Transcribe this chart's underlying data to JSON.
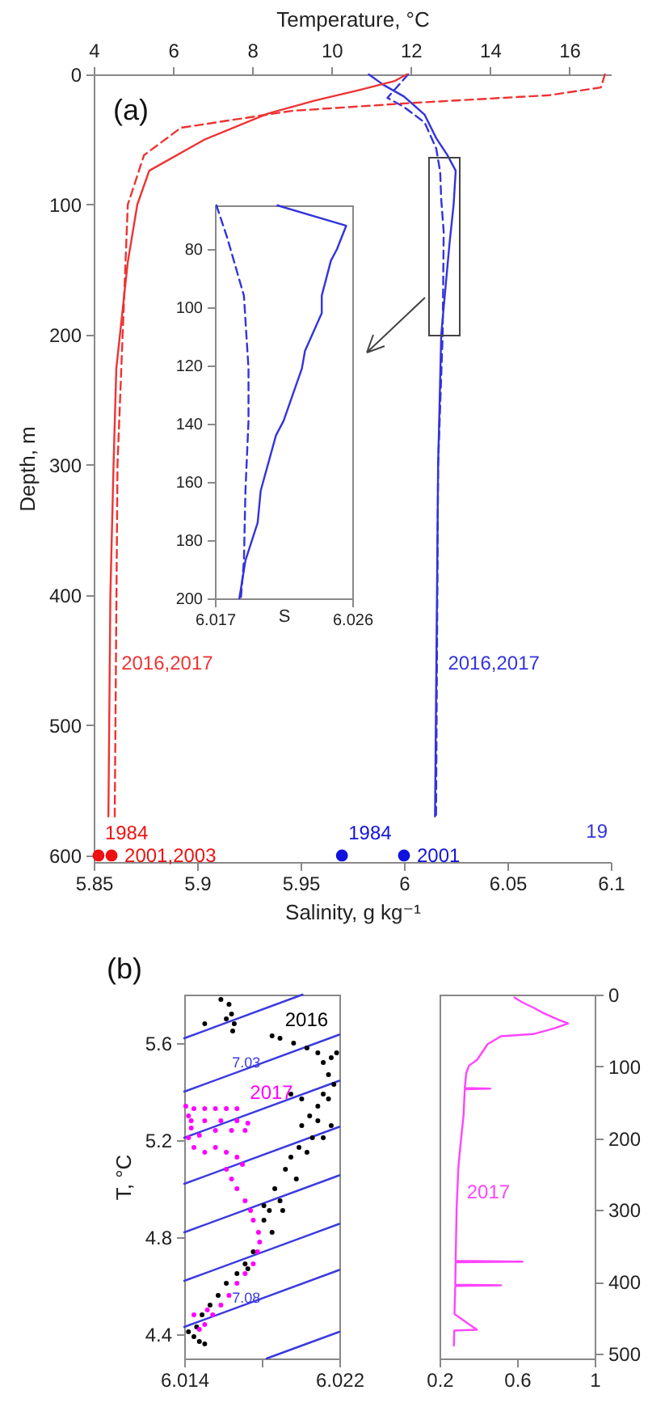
{
  "chart_data": [
    {
      "type": "line",
      "xlabel": "Salinity, g kg⁻¹",
      "x2label": "Temperature, °C",
      "ylabel": "Depth, m",
      "xlim": [
        5.85,
        6.1
      ],
      "xticks": [
        5.85,
        5.9,
        5.95,
        6,
        6.05,
        6.1
      ],
      "x2lim": [
        4,
        17.05
      ],
      "x2ticks": [
        4,
        6,
        8,
        10,
        12,
        14,
        16
      ],
      "ylim": [
        605,
        0
      ],
      "yticks": [
        0,
        100,
        200,
        300,
        400,
        500,
        600
      ],
      "annotations": [
        "(a)",
        "19"
      ],
      "series": [
        {
          "name": "2016,2017",
          "axis": "x2",
          "color": "#ee3333",
          "line_style": "solid",
          "x": [
            11.9,
            11.6,
            10.7,
            9.6,
            8.4,
            6.8,
            5.4,
            5.1,
            4.86,
            4.57,
            4.5,
            4.42,
            4.37
          ],
          "values": [
            0,
            5,
            12,
            20,
            30,
            50,
            74,
            100,
            144,
            226,
            300,
            400,
            570
          ]
        },
        {
          "axis": "x2",
          "color": "#ee3333",
          "line_style": "dashed",
          "x": [
            16.9,
            16.8,
            15.5,
            12,
            9,
            6.2,
            5.27,
            4.86,
            4.73,
            4.6,
            4.53
          ],
          "values": [
            0,
            10,
            16,
            22,
            28,
            41,
            62,
            100,
            200,
            300,
            570
          ]
        },
        {
          "name": "2016,2017",
          "color": "#3333dd",
          "line_style": "solid",
          "x": [
            5.983,
            5.99,
            6.0,
            6.01,
            6.0156,
            6.021,
            6.025,
            6.024,
            6.022,
            6.018,
            6.0165,
            6.015
          ],
          "values": [
            0,
            8,
            17,
            31,
            49,
            62,
            74,
            100,
            130,
            200,
            300,
            570
          ]
        },
        {
          "color": "#3333dd",
          "line_style": "dashed",
          "x": [
            6.002,
            5.992,
            6.0,
            6.01,
            6.0156,
            6.0175,
            6.018,
            6.0192,
            6.0187,
            6.0165,
            6.0155
          ],
          "values": [
            0,
            18,
            25,
            37,
            57,
            75,
            96,
            121,
            200,
            300,
            570
          ]
        },
        {
          "name": "1984",
          "type": "scatter",
          "axis": "x2",
          "color": "#ee1111",
          "marker": "circle",
          "x": [
            4.12
          ],
          "values": [
            600
          ]
        },
        {
          "name": "2001,2003",
          "type": "scatter",
          "axis": "x2",
          "color": "#ee1111",
          "marker": "circle",
          "x": [
            4.45
          ],
          "values": [
            600
          ]
        },
        {
          "name": "1984",
          "type": "scatter",
          "color": "#1111dd",
          "marker": "circle",
          "x": [
            5.97
          ],
          "values": [
            600
          ]
        },
        {
          "name": "2001",
          "type": "scatter",
          "color": "#1111dd",
          "marker": "circle",
          "x": [
            6.0
          ],
          "values": [
            600
          ]
        }
      ]
    },
    {
      "type": "line",
      "xlabel": "S",
      "xlim": [
        6.017,
        6.026
      ],
      "xticks": [
        6.017,
        6.026
      ],
      "ylim": [
        200,
        65
      ],
      "yticks": [
        80,
        100,
        120,
        140,
        160,
        180,
        200
      ],
      "series": [
        {
          "color": "#3333dd",
          "line_style": "solid",
          "x": [
            6.0211,
            6.0256,
            6.025,
            6.0246,
            6.024,
            6.024,
            6.0229,
            6.0227,
            6.0215,
            6.021,
            6.02,
            6.0198,
            6.019,
            6.0186
          ],
          "values": [
            65,
            72,
            80,
            84,
            96,
            102,
            115,
            121,
            139,
            144,
            163,
            174,
            187,
            200
          ]
        },
        {
          "color": "#3333dd",
          "line_style": "dashed",
          "x": [
            6.0171,
            6.0178,
            6.0189,
            6.0192,
            6.0192,
            6.019,
            6.0189,
            6.0187
          ],
          "values": [
            65,
            76,
            96,
            121,
            139,
            163,
            187,
            200
          ]
        }
      ]
    },
    {
      "type": "scatter",
      "ylabel": "T, °C",
      "xlim": [
        6.014,
        6.022
      ],
      "xticks": [
        {
          "value": 6.014,
          "label": "6.014"
        },
        {
          "value": 6.018,
          "label": null
        },
        {
          "value": 6.022,
          "label": "6.022"
        }
      ],
      "ylim": [
        4.3,
        5.8
      ],
      "yticks": [
        4.4,
        4.8,
        5.2,
        5.6
      ],
      "annotations": [
        "(b)"
      ],
      "series": [
        {
          "type": "line",
          "color": "#3a3ae0",
          "line_style": "solid",
          "x": [
            6.014,
            6.0201
          ],
          "values": [
            5.62,
            5.8
          ]
        },
        {
          "name": "7.03",
          "type": "line",
          "color": "#3a3ae0",
          "line_style": "solid",
          "x": [
            6.014,
            6.0172,
            6.022
          ],
          "values": [
            5.4,
            5.494,
            5.635
          ]
        },
        {
          "type": "line",
          "color": "#3a3ae0",
          "line_style": "solid",
          "x": [
            6.014,
            6.022
          ],
          "values": [
            5.21,
            5.445
          ]
        },
        {
          "type": "line",
          "color": "#3a3ae0",
          "line_style": "solid",
          "x": [
            6.014,
            6.022
          ],
          "values": [
            5.02,
            5.255
          ]
        },
        {
          "type": "line",
          "color": "#3a3ae0",
          "line_style": "solid",
          "x": [
            6.014,
            6.022
          ],
          "values": [
            4.82,
            5.055
          ]
        },
        {
          "type": "line",
          "color": "#3a3ae0",
          "line_style": "solid",
          "x": [
            6.014,
            6.022
          ],
          "values": [
            4.62,
            4.855
          ]
        },
        {
          "name": "7.08",
          "type": "line",
          "color": "#3a3ae0",
          "line_style": "solid",
          "x": [
            6.014,
            6.0172,
            6.022
          ],
          "values": [
            4.43,
            4.524,
            4.665
          ]
        },
        {
          "type": "line",
          "color": "#3a3ae0",
          "line_style": "solid",
          "x": [
            6.01825,
            6.022
          ],
          "values": [
            4.3,
            4.41
          ]
        },
        {
          "name": "2016",
          "color": "#000000",
          "marker": "circle",
          "x": [
            6.01589,
            6.01631,
            6.01644,
            6.01617,
            6.01658,
            6.0165,
            6.01506,
            6.01894,
            6.01964,
            6.02033,
            6.02089,
            6.02117,
            6.02144,
            6.02172,
            6.02186,
            6.02158,
            6.02117,
            6.02089,
            6.02144,
            6.02047,
            6.02006,
            6.02089,
            6.02061,
            6.01992,
            6.0195,
            6.02033,
            6.01922,
            6.01978,
            6.01867,
            6.01894,
            6.01839,
            6.01811,
            6.01853,
            6.01797,
            6.01756,
            6.01714,
            6.01672,
            6.01617,
            6.01575,
            6.01533,
            6.01492,
            6.01464,
            6.0145,
            6.01478,
            6.01506,
            6.01422,
            6.02006,
            6.0195,
            6.02117,
            6.02158,
            6.01811,
            6.01908,
            6.01728,
            6.01853
          ],
          "values": [
            5.78,
            5.76,
            5.72,
            5.7,
            5.68,
            5.65,
            5.68,
            5.62,
            5.6,
            5.58,
            5.56,
            5.52,
            5.47,
            5.43,
            5.56,
            5.54,
            5.39,
            5.34,
            5.37,
            5.3,
            5.26,
            5.28,
            5.21,
            5.17,
            5.13,
            5.15,
            5.08,
            5.04,
            5.0,
            4.95,
            4.91,
            4.87,
            4.82,
            null,
            4.74,
            4.69,
            4.65,
            4.61,
            4.56,
            4.52,
            4.48,
            4.43,
            4.39,
            4.37,
            4.36,
            4.41,
            5.37,
            5.39,
            5.21,
            5.26,
            4.93,
            4.91,
            4.67,
            5.63
          ]
        },
        {
          "name": "2017",
          "color": "#ff00ff",
          "marker": "circle",
          "x": [
            6.01408,
            6.0145,
            6.01506,
            6.01561,
            6.01617,
            6.01436,
            6.01506,
            6.01589,
            6.01672,
            6.01728,
            6.01422,
            6.01478,
            6.01561,
            6.01644,
            6.01714,
            6.0145,
            6.01506,
            6.01561,
            6.01617,
            6.01672,
            6.017,
            6.01617,
            6.01644,
            6.01672,
            6.01714,
            6.01742,
            6.01756,
            6.01783,
            6.01789,
            6.01778,
            6.01756,
            6.01714,
            6.01672,
            6.01631,
            6.01589,
            6.01547,
            6.01506,
            6.01478,
            6.0145,
            6.01519,
            6.01422,
            6.01436,
            6.01672
          ],
          "values": [
            5.34,
            5.33,
            5.33,
            5.33,
            5.33,
            5.28,
            5.28,
            5.28,
            5.28,
            5.27,
            5.21,
            5.22,
            5.24,
            5.24,
            5.24,
            5.17,
            5.15,
            5.17,
            5.15,
            5.13,
            5.1,
            5.08,
            5.04,
            5.0,
            4.95,
            4.91,
            4.87,
            4.82,
            4.78,
            4.74,
            4.69,
            4.65,
            4.61,
            4.56,
            4.52,
            4.48,
            4.44,
            4.42,
            4.48,
            4.5,
            5.3,
            5.25,
            5.33
          ]
        }
      ]
    },
    {
      "type": "line",
      "xlim": [
        0.2,
        1
      ],
      "xticks": [
        0.2,
        0.6,
        1
      ],
      "ylim": [
        507,
        0
      ],
      "yticks": [
        0,
        100,
        200,
        300,
        400,
        500
      ],
      "series": [
        {
          "name": "2017",
          "color": "#ff44ff",
          "line_style": "solid",
          "x": [
            0.586,
            0.628,
            0.683,
            0.738,
            0.821,
            0.862,
            0.793,
            0.683,
            0.517,
            0.448,
            0.421,
            0.393,
            0.352,
            0.338,
            0.33,
            0.462,
            0.33,
            0.324,
            0.31,
            0.297,
            0.288,
            0.283,
            0.628,
            0.283,
            0.281,
            0.517,
            0.281,
            0.277,
            0.393,
            0.276,
            0.274
          ],
          "values": [
            4,
            11,
            18,
            26,
            36,
            40,
            47,
            55,
            58,
            69,
            80,
            91,
            99,
            109,
            130,
            131,
            132,
            168,
            204,
            241,
            299,
            371,
            372,
            373,
            404,
            405,
            406,
            445,
            467,
            468,
            489
          ]
        }
      ]
    }
  ]
}
